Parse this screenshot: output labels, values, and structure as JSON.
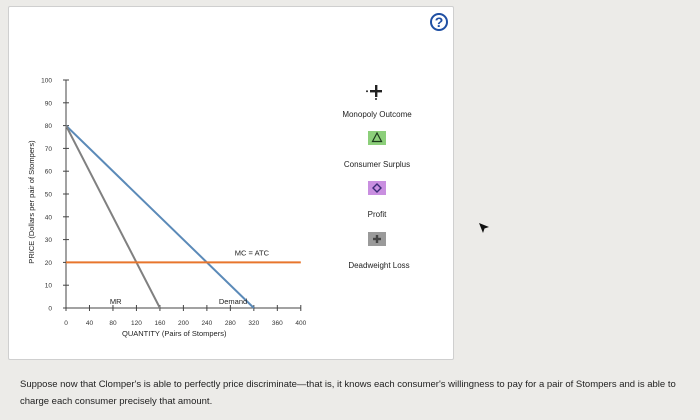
{
  "help_label": "?",
  "chart_data": {
    "type": "line",
    "ylabel": "PRICE (Dollars per pair of Stompers)",
    "xlabel": "QUANTITY (Pairs of Stompers)",
    "xlim": [
      0,
      400
    ],
    "ylim": [
      0,
      100
    ],
    "x_ticks": [
      0,
      40,
      80,
      120,
      160,
      200,
      240,
      280,
      320,
      360,
      400
    ],
    "y_ticks": [
      0,
      10,
      20,
      30,
      40,
      50,
      60,
      70,
      80,
      90,
      100
    ],
    "series": [
      {
        "name": "Demand",
        "color": "#5b8ab8",
        "points": [
          [
            0,
            80
          ],
          [
            320,
            0
          ]
        ]
      },
      {
        "name": "MR",
        "color": "#808080",
        "points": [
          [
            0,
            80
          ],
          [
            160,
            0
          ]
        ]
      },
      {
        "name": "MC = ATC",
        "color": "#e8762d",
        "points": [
          [
            0,
            20
          ],
          [
            400,
            20
          ]
        ]
      }
    ]
  },
  "legend": [
    {
      "label": "Monopoly Outcome",
      "icon": "plus-point-icon",
      "color": "#222222"
    },
    {
      "label": "Consumer Surplus",
      "icon": "triangle-icon",
      "color": "#8ccf7a"
    },
    {
      "label": "Profit",
      "icon": "diamond-icon",
      "color": "#c98fe0"
    },
    {
      "label": "Deadweight Loss",
      "icon": "plus-square-icon",
      "color": "#9a9a9a"
    }
  ],
  "question_text": "Suppose now that Clomper's is able to perfectly price discriminate—that is, it knows each consumer's willingness to pay for a pair of Stompers and is able to charge each consumer precisely that amount."
}
